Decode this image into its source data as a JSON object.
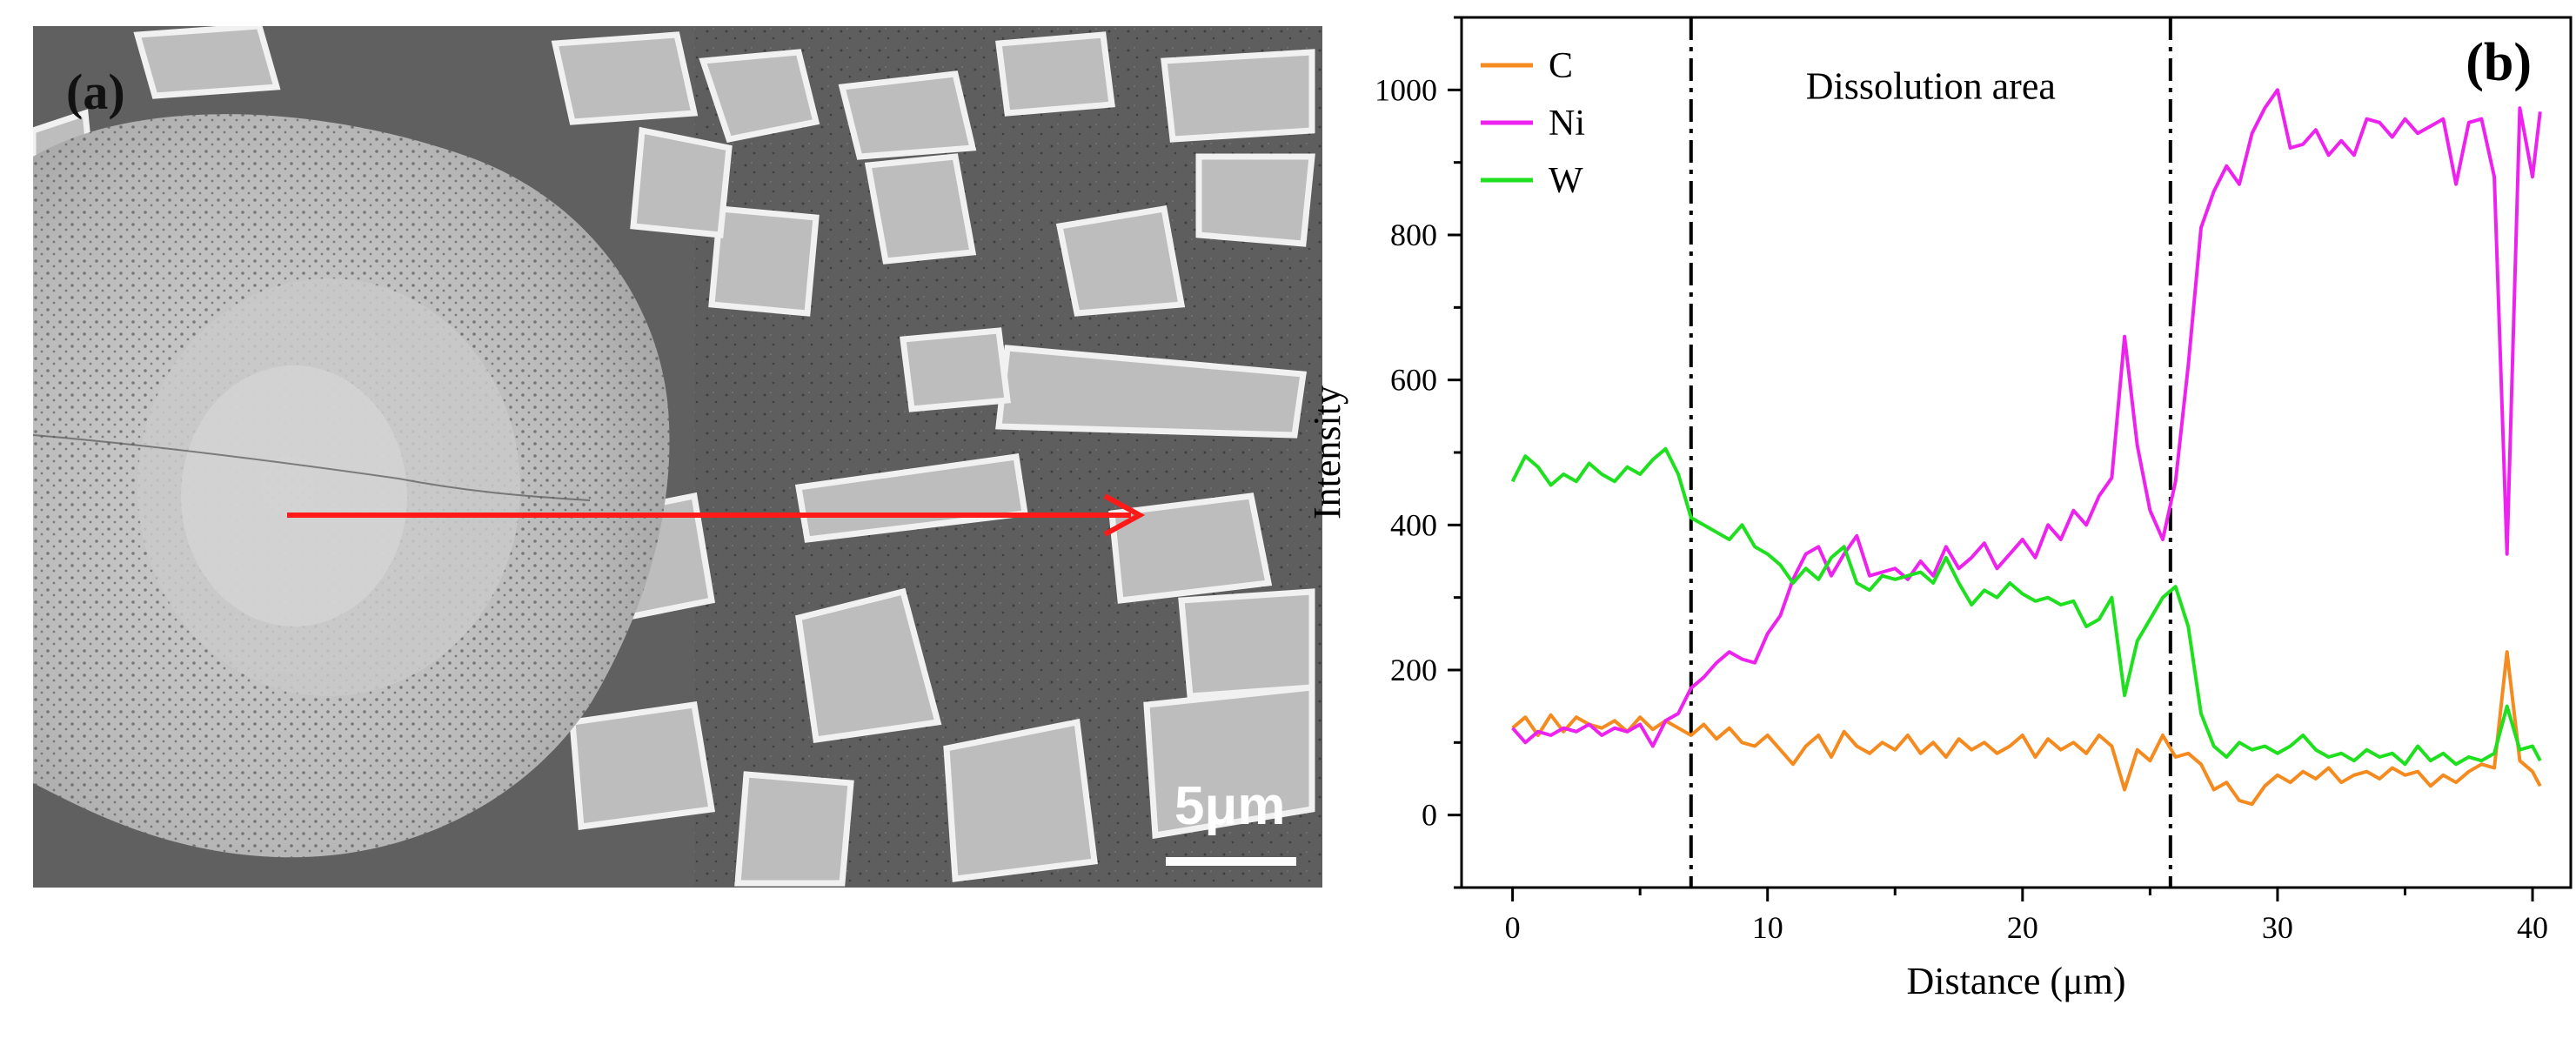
{
  "panel_a": {
    "label": "(a)",
    "scale_bar": "5μm"
  },
  "chart_data": {
    "type": "line",
    "panel_label": "(b)",
    "xlabel": "Distance (μm)",
    "ylabel": "Intensity",
    "xlim": [
      -2,
      41.5
    ],
    "ylim": [
      -100,
      1100
    ],
    "xticks": [
      0,
      10,
      20,
      30,
      40
    ],
    "yticks": [
      0,
      200,
      400,
      600,
      800,
      1000
    ],
    "grid": false,
    "legend_position": "top-left",
    "annotation": "Dissolution area",
    "vlines": [
      7.0,
      25.8
    ],
    "x": [
      0,
      0.5,
      1,
      1.5,
      2,
      2.5,
      3,
      3.5,
      4,
      4.5,
      5,
      5.5,
      6,
      6.5,
      7,
      7.5,
      8,
      8.5,
      9,
      9.5,
      10,
      10.5,
      11,
      11.5,
      12,
      12.5,
      13,
      13.5,
      14,
      14.5,
      15,
      15.5,
      16,
      16.5,
      17,
      17.5,
      18,
      18.5,
      19,
      19.5,
      20,
      20.5,
      21,
      21.5,
      22,
      22.5,
      23,
      23.5,
      24,
      24.5,
      25,
      25.5,
      26,
      26.5,
      27,
      27.5,
      28,
      28.5,
      29,
      29.5,
      30,
      30.5,
      31,
      31.5,
      32,
      32.5,
      33,
      33.5,
      34,
      34.5,
      35,
      35.5,
      36,
      36.5,
      37,
      37.5,
      38,
      38.5,
      39,
      39.5,
      40,
      40.3
    ],
    "series": [
      {
        "name": "C",
        "color": "#f58a1f",
        "values": [
          120,
          135,
          110,
          138,
          115,
          135,
          125,
          120,
          130,
          115,
          135,
          118,
          130,
          120,
          110,
          125,
          105,
          120,
          100,
          95,
          110,
          90,
          70,
          95,
          110,
          80,
          115,
          95,
          85,
          100,
          90,
          110,
          85,
          100,
          80,
          105,
          90,
          100,
          85,
          95,
          110,
          80,
          105,
          90,
          100,
          85,
          110,
          95,
          35,
          90,
          75,
          110,
          80,
          85,
          70,
          35,
          45,
          20,
          15,
          40,
          55,
          45,
          60,
          50,
          65,
          45,
          55,
          60,
          50,
          65,
          55,
          60,
          40,
          55,
          45,
          60,
          70,
          65,
          225,
          75,
          60,
          40
        ]
      },
      {
        "name": "Ni",
        "color": "#ee22ee",
        "values": [
          120,
          100,
          115,
          110,
          120,
          115,
          125,
          110,
          120,
          115,
          125,
          95,
          130,
          140,
          175,
          190,
          210,
          225,
          215,
          210,
          250,
          275,
          325,
          360,
          370,
          330,
          360,
          385,
          330,
          335,
          340,
          325,
          350,
          330,
          370,
          340,
          355,
          375,
          340,
          360,
          380,
          355,
          400,
          380,
          420,
          400,
          440,
          465,
          660,
          510,
          420,
          380,
          460,
          620,
          810,
          860,
          895,
          870,
          940,
          975,
          1000,
          920,
          925,
          945,
          910,
          930,
          910,
          960,
          955,
          935,
          960,
          940,
          950,
          960,
          870,
          955,
          960,
          880,
          360,
          975,
          880,
          970
        ]
      },
      {
        "name": "W",
        "color": "#1fe01f",
        "values": [
          460,
          495,
          480,
          455,
          470,
          460,
          485,
          470,
          460,
          480,
          470,
          490,
          505,
          470,
          410,
          400,
          390,
          380,
          400,
          370,
          360,
          345,
          320,
          340,
          325,
          355,
          370,
          320,
          310,
          330,
          325,
          330,
          335,
          320,
          355,
          320,
          290,
          310,
          300,
          320,
          305,
          295,
          300,
          290,
          295,
          260,
          270,
          300,
          165,
          240,
          270,
          300,
          315,
          260,
          140,
          95,
          80,
          100,
          90,
          95,
          85,
          95,
          110,
          90,
          80,
          85,
          75,
          90,
          80,
          85,
          70,
          95,
          75,
          85,
          70,
          80,
          75,
          85,
          150,
          90,
          95,
          75
        ]
      }
    ]
  }
}
